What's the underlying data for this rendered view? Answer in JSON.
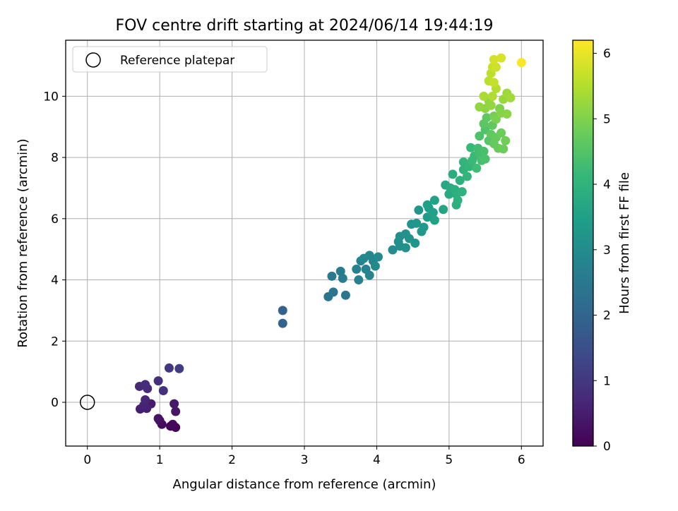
{
  "chart_data": {
    "type": "scatter",
    "title": "FOV centre drift starting at 2024/06/14 19:44:19",
    "xlabel": "Angular distance from reference (arcmin)",
    "ylabel": "Rotation from reference (arcmin)",
    "xlim": [
      -0.3,
      6.3
    ],
    "ylim": [
      -1.43,
      11.83
    ],
    "xticks": [
      0,
      1,
      2,
      3,
      4,
      5,
      6
    ],
    "yticks": [
      0,
      2,
      4,
      6,
      8,
      10
    ],
    "grid": true,
    "legend": {
      "placement": "top-left",
      "entries": [
        "Reference platepar"
      ]
    },
    "reference_point": {
      "x": 0,
      "y": 0
    },
    "colorbar": {
      "label": "Hours from first FF file",
      "colormap": "viridis",
      "range": [
        0,
        6.2
      ],
      "ticks": [
        0,
        1,
        2,
        3,
        4,
        5,
        6
      ]
    },
    "points": [
      {
        "x": 1.22,
        "y": -0.82,
        "c": 0.05
      },
      {
        "x": 1.15,
        "y": -0.78,
        "c": 0.1
      },
      {
        "x": 1.18,
        "y": -0.72,
        "c": 0.15
      },
      {
        "x": 1.03,
        "y": -0.72,
        "c": 0.2
      },
      {
        "x": 1.0,
        "y": -0.6,
        "c": 0.25
      },
      {
        "x": 0.98,
        "y": -0.53,
        "c": 0.3
      },
      {
        "x": 1.22,
        "y": -0.3,
        "c": 0.35
      },
      {
        "x": 1.2,
        "y": -0.05,
        "c": 0.4
      },
      {
        "x": 0.88,
        "y": -0.05,
        "c": 0.45
      },
      {
        "x": 0.73,
        "y": -0.22,
        "c": 0.5
      },
      {
        "x": 0.82,
        "y": -0.2,
        "c": 0.55
      },
      {
        "x": 0.78,
        "y": -0.1,
        "c": 0.6
      },
      {
        "x": 0.8,
        "y": 0.08,
        "c": 0.65
      },
      {
        "x": 0.72,
        "y": 0.52,
        "c": 0.7
      },
      {
        "x": 0.83,
        "y": 0.45,
        "c": 0.75
      },
      {
        "x": 0.8,
        "y": 0.58,
        "c": 0.8
      },
      {
        "x": 0.98,
        "y": 0.7,
        "c": 0.85
      },
      {
        "x": 1.05,
        "y": 0.38,
        "c": 0.9
      },
      {
        "x": 1.13,
        "y": 1.12,
        "c": 1.0
      },
      {
        "x": 1.27,
        "y": 1.1,
        "c": 1.1
      },
      {
        "x": 2.7,
        "y": 3.0,
        "c": 1.95
      },
      {
        "x": 2.7,
        "y": 2.58,
        "c": 2.0
      },
      {
        "x": 3.33,
        "y": 3.45,
        "c": 2.4
      },
      {
        "x": 3.4,
        "y": 3.6,
        "c": 2.45
      },
      {
        "x": 3.57,
        "y": 3.5,
        "c": 2.5
      },
      {
        "x": 3.38,
        "y": 4.12,
        "c": 2.55
      },
      {
        "x": 3.5,
        "y": 4.28,
        "c": 2.6
      },
      {
        "x": 3.53,
        "y": 4.05,
        "c": 2.65
      },
      {
        "x": 3.72,
        "y": 4.35,
        "c": 2.7
      },
      {
        "x": 3.75,
        "y": 4.0,
        "c": 2.72
      },
      {
        "x": 3.78,
        "y": 4.62,
        "c": 2.75
      },
      {
        "x": 3.85,
        "y": 4.35,
        "c": 2.78
      },
      {
        "x": 3.9,
        "y": 4.15,
        "c": 2.8
      },
      {
        "x": 3.9,
        "y": 4.8,
        "c": 2.85
      },
      {
        "x": 3.95,
        "y": 4.62,
        "c": 2.87
      },
      {
        "x": 3.98,
        "y": 4.45,
        "c": 2.9
      },
      {
        "x": 3.82,
        "y": 4.7,
        "c": 2.92
      },
      {
        "x": 4.02,
        "y": 4.75,
        "c": 2.95
      },
      {
        "x": 4.22,
        "y": 4.98,
        "c": 3.0
      },
      {
        "x": 4.32,
        "y": 5.1,
        "c": 3.05
      },
      {
        "x": 4.3,
        "y": 5.25,
        "c": 3.08
      },
      {
        "x": 4.32,
        "y": 5.42,
        "c": 3.1
      },
      {
        "x": 4.4,
        "y": 5.05,
        "c": 3.12
      },
      {
        "x": 4.4,
        "y": 5.5,
        "c": 3.15
      },
      {
        "x": 4.45,
        "y": 5.35,
        "c": 3.18
      },
      {
        "x": 4.48,
        "y": 5.82,
        "c": 3.2
      },
      {
        "x": 4.53,
        "y": 5.2,
        "c": 3.22
      },
      {
        "x": 4.55,
        "y": 5.85,
        "c": 3.25
      },
      {
        "x": 4.58,
        "y": 6.28,
        "c": 3.28
      },
      {
        "x": 4.62,
        "y": 5.58,
        "c": 3.3
      },
      {
        "x": 4.65,
        "y": 5.72,
        "c": 3.35
      },
      {
        "x": 4.7,
        "y": 6.05,
        "c": 3.4
      },
      {
        "x": 4.72,
        "y": 6.35,
        "c": 3.45
      },
      {
        "x": 4.7,
        "y": 6.45,
        "c": 3.5
      },
      {
        "x": 4.78,
        "y": 6.2,
        "c": 3.52
      },
      {
        "x": 4.8,
        "y": 6.6,
        "c": 3.55
      },
      {
        "x": 4.8,
        "y": 5.95,
        "c": 3.58
      },
      {
        "x": 4.92,
        "y": 6.3,
        "c": 3.6
      },
      {
        "x": 4.95,
        "y": 7.1,
        "c": 3.7
      },
      {
        "x": 5.0,
        "y": 6.8,
        "c": 3.75
      },
      {
        "x": 5.02,
        "y": 7.0,
        "c": 3.8
      },
      {
        "x": 5.05,
        "y": 7.45,
        "c": 3.85
      },
      {
        "x": 5.08,
        "y": 6.95,
        "c": 3.88
      },
      {
        "x": 5.1,
        "y": 6.8,
        "c": 3.9
      },
      {
        "x": 5.1,
        "y": 6.45,
        "c": 3.92
      },
      {
        "x": 5.12,
        "y": 6.6,
        "c": 3.94
      },
      {
        "x": 5.15,
        "y": 7.25,
        "c": 3.96
      },
      {
        "x": 5.18,
        "y": 6.88,
        "c": 3.98
      },
      {
        "x": 5.2,
        "y": 7.6,
        "c": 4.0
      },
      {
        "x": 5.2,
        "y": 7.85,
        "c": 4.05
      },
      {
        "x": 5.25,
        "y": 7.38,
        "c": 4.08
      },
      {
        "x": 5.28,
        "y": 7.7,
        "c": 4.1
      },
      {
        "x": 5.3,
        "y": 8.32,
        "c": 4.15
      },
      {
        "x": 5.32,
        "y": 7.9,
        "c": 4.18
      },
      {
        "x": 5.35,
        "y": 8.05,
        "c": 4.2
      },
      {
        "x": 5.38,
        "y": 7.65,
        "c": 4.25
      },
      {
        "x": 5.4,
        "y": 8.3,
        "c": 4.28
      },
      {
        "x": 5.42,
        "y": 8.1,
        "c": 4.3
      },
      {
        "x": 5.45,
        "y": 7.9,
        "c": 4.35
      },
      {
        "x": 5.48,
        "y": 8.2,
        "c": 4.38
      },
      {
        "x": 5.5,
        "y": 7.95,
        "c": 4.4
      },
      {
        "x": 5.42,
        "y": 8.7,
        "c": 4.45
      },
      {
        "x": 5.5,
        "y": 8.9,
        "c": 4.5
      },
      {
        "x": 5.55,
        "y": 8.55,
        "c": 4.55
      },
      {
        "x": 5.48,
        "y": 9.1,
        "c": 4.6
      },
      {
        "x": 5.52,
        "y": 9.3,
        "c": 4.62
      },
      {
        "x": 5.58,
        "y": 8.75,
        "c": 4.65
      },
      {
        "x": 5.6,
        "y": 9.05,
        "c": 4.68
      },
      {
        "x": 5.62,
        "y": 8.45,
        "c": 4.7
      },
      {
        "x": 5.65,
        "y": 8.65,
        "c": 4.72
      },
      {
        "x": 5.68,
        "y": 8.3,
        "c": 4.75
      },
      {
        "x": 5.72,
        "y": 8.8,
        "c": 4.78
      },
      {
        "x": 5.75,
        "y": 8.28,
        "c": 4.8
      },
      {
        "x": 5.78,
        "y": 8.55,
        "c": 4.85
      },
      {
        "x": 5.62,
        "y": 9.35,
        "c": 4.9
      },
      {
        "x": 5.65,
        "y": 9.25,
        "c": 4.95
      },
      {
        "x": 5.7,
        "y": 9.6,
        "c": 5.0
      },
      {
        "x": 5.72,
        "y": 9.45,
        "c": 5.05
      },
      {
        "x": 5.8,
        "y": 9.42,
        "c": 5.1
      },
      {
        "x": 5.5,
        "y": 9.6,
        "c": 5.12
      },
      {
        "x": 5.55,
        "y": 9.85,
        "c": 5.15
      },
      {
        "x": 5.42,
        "y": 9.65,
        "c": 5.18
      },
      {
        "x": 5.58,
        "y": 9.7,
        "c": 5.2
      },
      {
        "x": 5.75,
        "y": 9.9,
        "c": 5.25
      },
      {
        "x": 5.8,
        "y": 10.1,
        "c": 5.3
      },
      {
        "x": 5.85,
        "y": 9.95,
        "c": 5.35
      },
      {
        "x": 5.48,
        "y": 10.0,
        "c": 5.4
      },
      {
        "x": 5.6,
        "y": 10.0,
        "c": 5.45
      },
      {
        "x": 5.65,
        "y": 10.25,
        "c": 5.5
      },
      {
        "x": 5.55,
        "y": 10.5,
        "c": 5.55
      },
      {
        "x": 5.58,
        "y": 10.75,
        "c": 5.6
      },
      {
        "x": 5.62,
        "y": 10.45,
        "c": 5.65
      },
      {
        "x": 5.6,
        "y": 10.95,
        "c": 5.7
      },
      {
        "x": 5.65,
        "y": 10.95,
        "c": 5.75
      },
      {
        "x": 5.62,
        "y": 11.2,
        "c": 5.8
      },
      {
        "x": 5.72,
        "y": 11.25,
        "c": 5.85
      },
      {
        "x": 6.0,
        "y": 11.1,
        "c": 6.15
      }
    ]
  }
}
